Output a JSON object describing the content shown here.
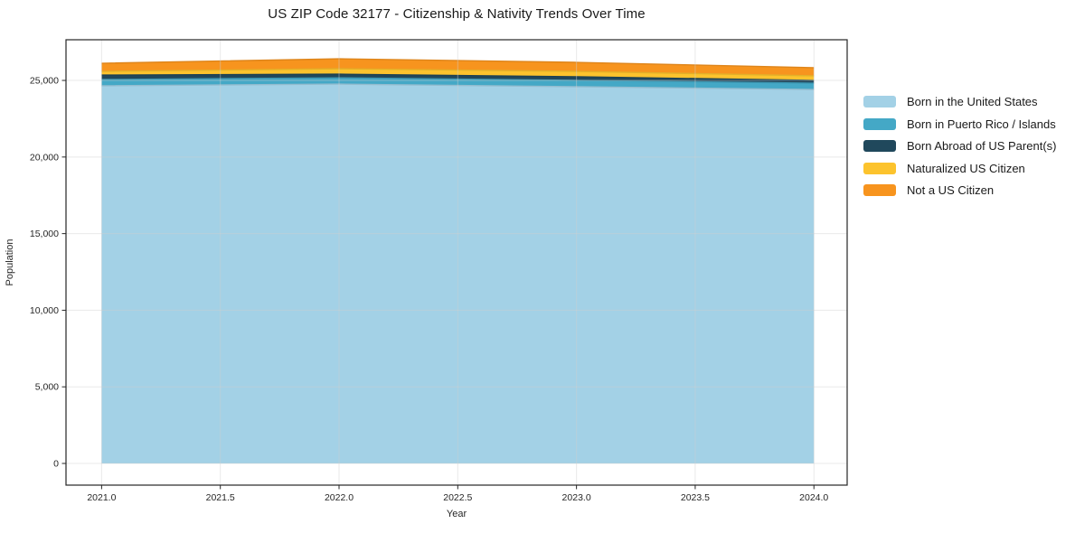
{
  "chart_data": {
    "type": "area",
    "stacked": true,
    "title": "US ZIP Code 32177 - Citizenship & Nativity Trends Over Time",
    "xlabel": "Year",
    "ylabel": "Population",
    "x": [
      2021,
      2022,
      2023,
      2024
    ],
    "series": [
      {
        "name": "Born in the United States",
        "color": "#a3d1e6",
        "values": [
          24650,
          24760,
          24590,
          24410
        ]
      },
      {
        "name": "Born in Puerto Rico / Islands",
        "color": "#44a8c6",
        "values": [
          410,
          410,
          410,
          410
        ]
      },
      {
        "name": "Born Abroad of US Parent(s)",
        "color": "#20485c",
        "values": [
          290,
          240,
          240,
          180
        ]
      },
      {
        "name": "Naturalized US Citizen",
        "color": "#fcc32d",
        "values": [
          240,
          350,
          350,
          300
        ]
      },
      {
        "name": "Not a US Citizen",
        "color": "#f7941e",
        "values": [
          530,
          650,
          590,
          530
        ]
      }
    ],
    "totals": [
      26120,
      26410,
      26180,
      25830
    ],
    "xticks": [
      2021.0,
      2021.5,
      2022.0,
      2022.5,
      2023.0,
      2023.5,
      2024.0
    ],
    "xtick_labels": [
      "2021.0",
      "2021.5",
      "2022.0",
      "2022.5",
      "2023.0",
      "2023.5",
      "2024.0"
    ],
    "yticks": [
      0,
      5000,
      10000,
      15000,
      20000,
      25000
    ],
    "ytick_labels": [
      "0",
      "5,000",
      "10,000",
      "15,000",
      "20,000",
      "25,000"
    ],
    "xlim": [
      2020.85,
      2024.14
    ],
    "ylim": [
      -1415,
      27655
    ],
    "grid": true,
    "legend_position": "right-outside"
  },
  "styles": {
    "background": "#ffffff",
    "frame_color": "#262626",
    "grid_color": "#cfcfcf",
    "tick_text_color": "#262626",
    "axis_label_color": "#262626",
    "title_color": "#1a1a1a"
  }
}
